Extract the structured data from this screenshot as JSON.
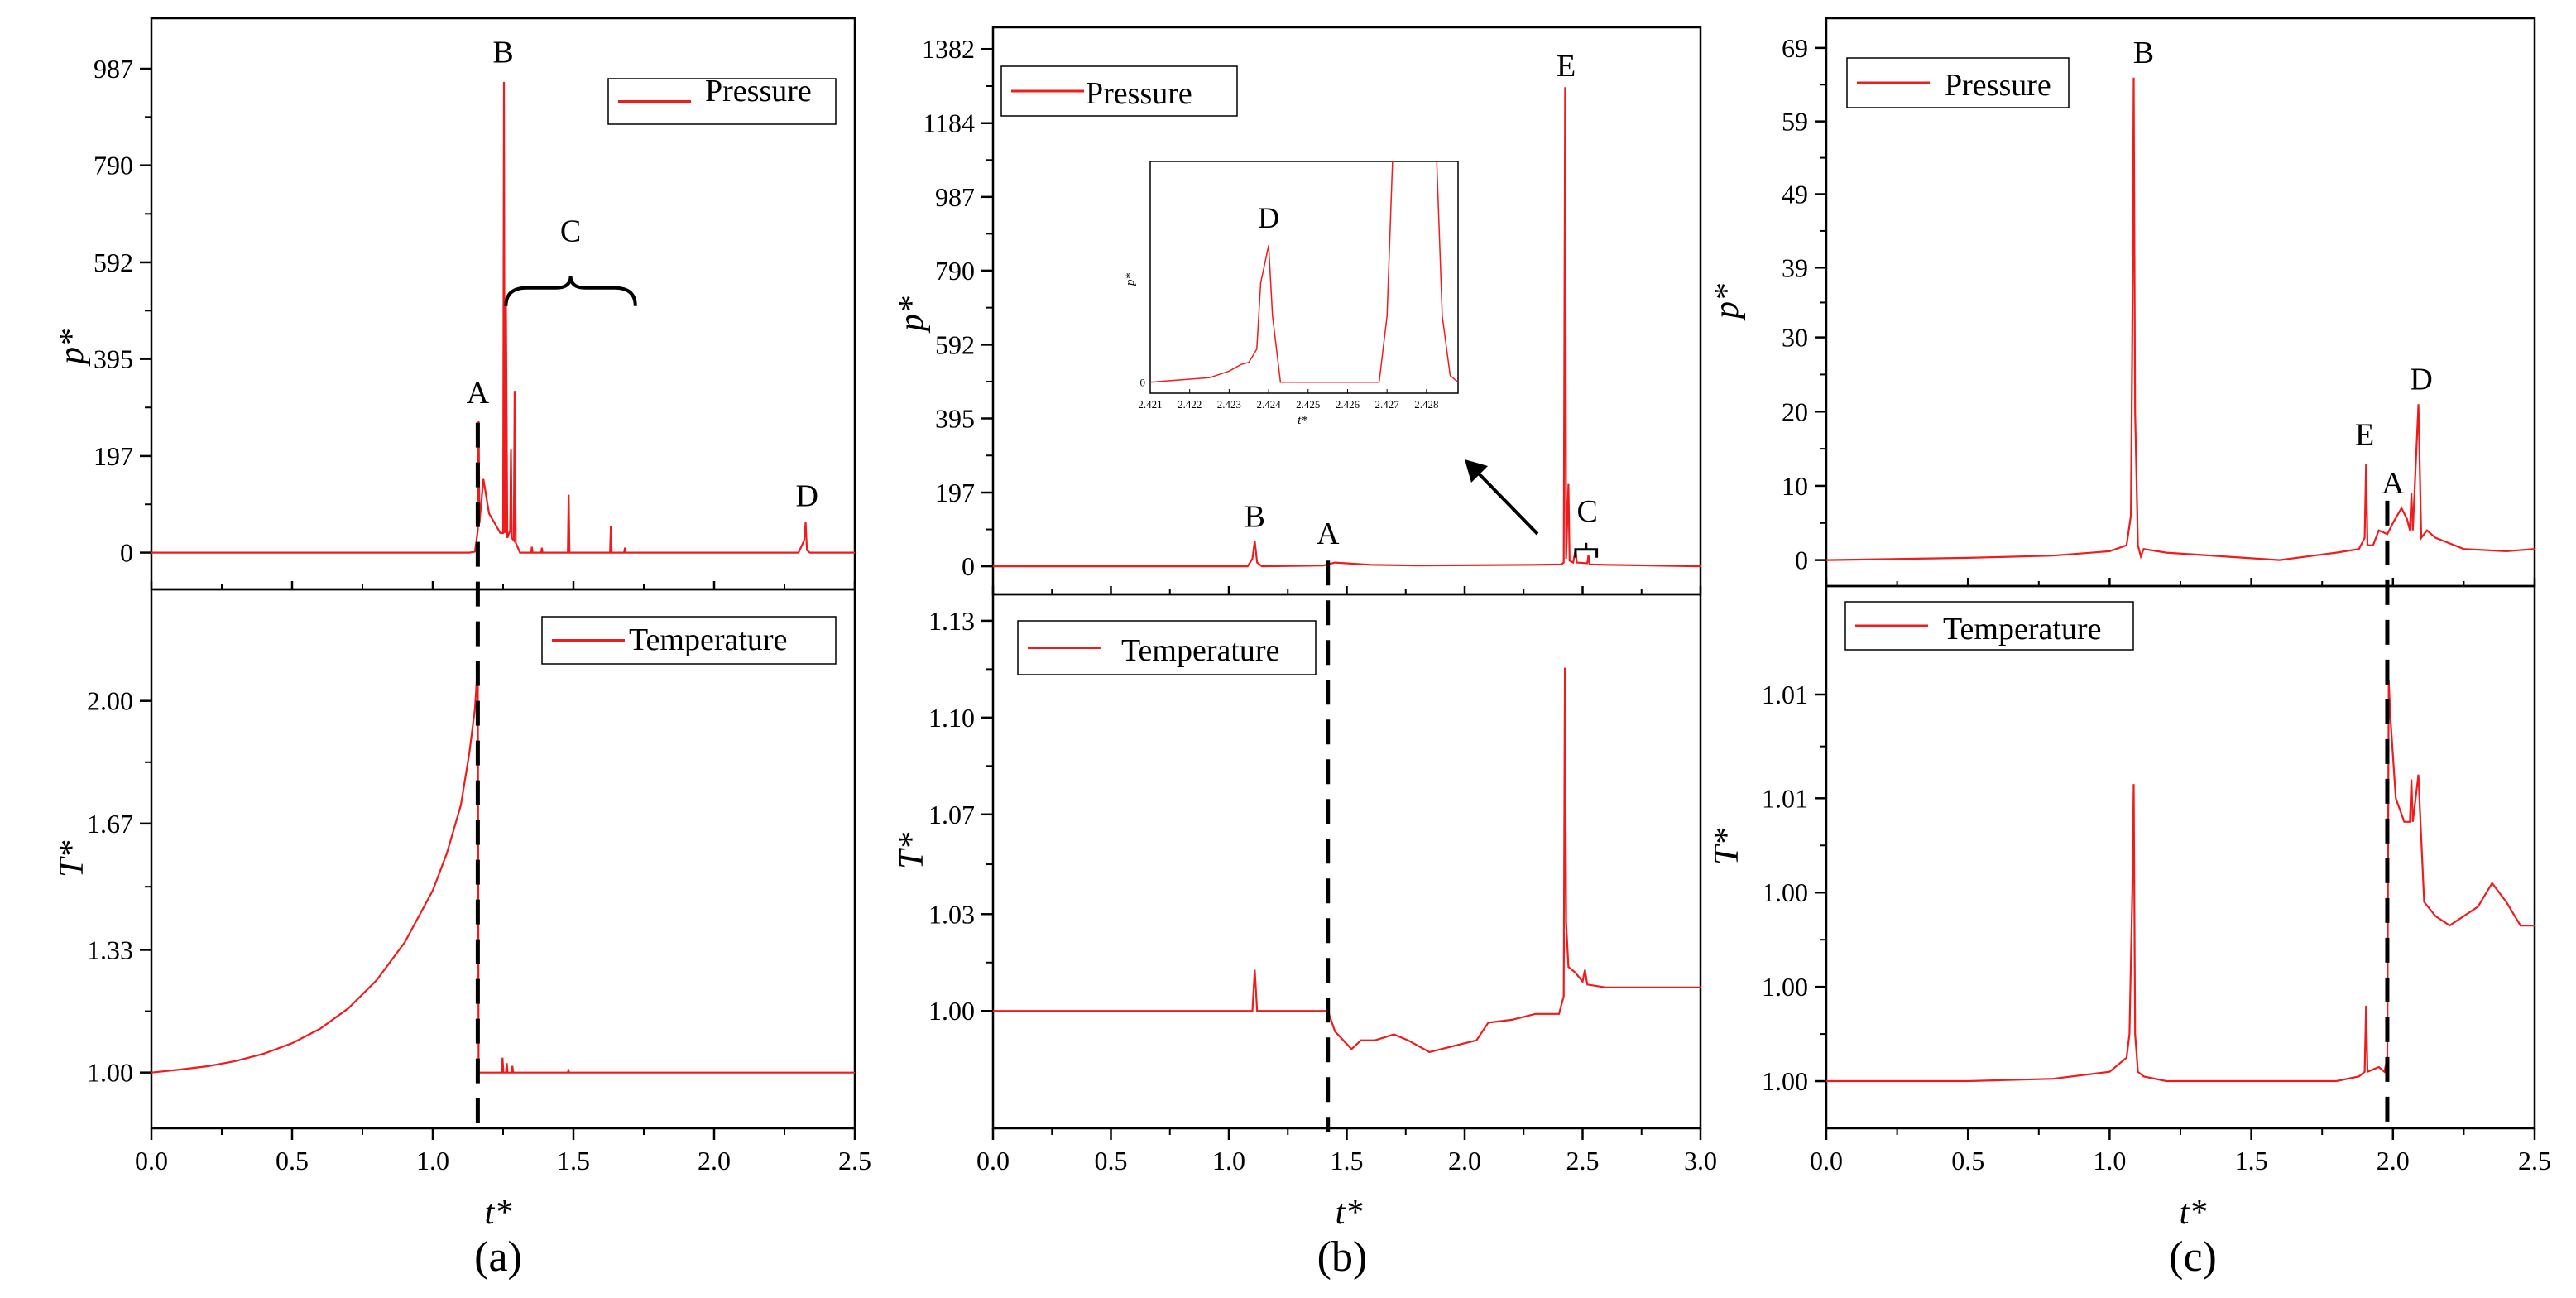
{
  "colors": {
    "series": "#ee1c1c",
    "axis": "#000000",
    "dash": "#000000"
  },
  "chart_data": [
    {
      "type": "line",
      "panel_label": "(a)",
      "xlabel": "t*",
      "xlim": [
        0,
        2.5
      ],
      "xticks": [
        "0.0",
        "0.5",
        "1.0",
        "1.5",
        "2.0",
        "2.5"
      ],
      "dashed_line_x": 1.16,
      "top": {
        "legend": "Pressure",
        "legend_position": "top-right",
        "ylabel": "p*",
        "ylim": [
          -75,
          1090
        ],
        "yticks": [
          {
            "v": 0,
            "label": "0"
          },
          {
            "v": 197,
            "label": "197"
          },
          {
            "v": 395,
            "label": "395"
          },
          {
            "v": 592,
            "label": "592"
          },
          {
            "v": 790,
            "label": "790"
          },
          {
            "v": 987,
            "label": "987"
          }
        ],
        "series": [
          [
            0,
            0
          ],
          [
            1.13,
            0
          ],
          [
            1.15,
            2
          ],
          [
            1.16,
            45
          ],
          [
            1.163,
            268
          ],
          [
            1.166,
            60
          ],
          [
            1.18,
            150
          ],
          [
            1.2,
            80
          ],
          [
            1.24,
            40
          ],
          [
            1.25,
            40
          ],
          [
            1.253,
            960
          ],
          [
            1.256,
            40
          ],
          [
            1.26,
            520
          ],
          [
            1.265,
            30
          ],
          [
            1.275,
            45
          ],
          [
            1.278,
            210
          ],
          [
            1.281,
            30
          ],
          [
            1.288,
            25
          ],
          [
            1.291,
            330
          ],
          [
            1.295,
            20
          ],
          [
            1.31,
            0
          ],
          [
            1.35,
            0
          ],
          [
            1.352,
            12
          ],
          [
            1.355,
            0
          ],
          [
            1.385,
            0
          ],
          [
            1.388,
            10
          ],
          [
            1.39,
            0
          ],
          [
            1.48,
            0
          ],
          [
            1.483,
            118
          ],
          [
            1.486,
            0
          ],
          [
            1.63,
            0
          ],
          [
            1.633,
            55
          ],
          [
            1.636,
            0
          ],
          [
            1.68,
            0
          ],
          [
            1.683,
            10
          ],
          [
            1.686,
            0
          ],
          [
            2.3,
            0
          ],
          [
            2.32,
            25
          ],
          [
            2.325,
            62
          ],
          [
            2.33,
            5
          ],
          [
            2.34,
            0
          ],
          [
            2.5,
            0
          ]
        ],
        "annotations": [
          {
            "label": "B",
            "x": 1.25,
            "y": 1000
          },
          {
            "label": "C",
            "x": 1.49,
            "y": 635
          },
          {
            "label": "A",
            "x": 1.16,
            "y": 305
          },
          {
            "label": "D",
            "x": 2.33,
            "y": 95
          }
        ]
      },
      "bottom": {
        "legend": "Temperature",
        "legend_position": "top-right",
        "ylabel": "T*",
        "ylim": [
          0.85,
          2.3
        ],
        "yticks": [
          {
            "v": 1.0,
            "label": "1.00"
          },
          {
            "v": 1.33,
            "label": "1.33"
          },
          {
            "v": 1.67,
            "label": "1.67"
          },
          {
            "v": 2.0,
            "label": "2.00"
          }
        ],
        "series": [
          [
            0,
            1.0
          ],
          [
            0.1,
            1.008
          ],
          [
            0.2,
            1.017
          ],
          [
            0.3,
            1.031
          ],
          [
            0.4,
            1.051
          ],
          [
            0.5,
            1.079
          ],
          [
            0.6,
            1.118
          ],
          [
            0.7,
            1.173
          ],
          [
            0.8,
            1.248
          ],
          [
            0.9,
            1.35
          ],
          [
            1.0,
            1.49
          ],
          [
            1.05,
            1.59
          ],
          [
            1.1,
            1.72
          ],
          [
            1.13,
            1.86
          ],
          [
            1.15,
            1.98
          ],
          [
            1.16,
            2.1
          ],
          [
            1.163,
            1.0
          ],
          [
            1.245,
            1.0
          ],
          [
            1.248,
            1.04
          ],
          [
            1.251,
            1.0
          ],
          [
            1.26,
            1.0
          ],
          [
            1.263,
            1.025
          ],
          [
            1.266,
            1.0
          ],
          [
            1.28,
            1.0
          ],
          [
            1.283,
            1.018
          ],
          [
            1.286,
            1.0
          ],
          [
            1.48,
            1.0
          ],
          [
            1.482,
            1.006
          ],
          [
            1.485,
            1.0
          ],
          [
            2.5,
            1.0
          ]
        ]
      }
    },
    {
      "type": "line",
      "panel_label": "(b)",
      "xlabel": "t*",
      "xlim": [
        0,
        3.0
      ],
      "xticks": [
        "0.0",
        "0.5",
        "1.0",
        "1.5",
        "2.0",
        "2.5",
        "3.0"
      ],
      "dashed_line_x": 1.42,
      "top": {
        "legend": "Pressure",
        "legend_position": "top-left",
        "ylabel": "p*",
        "ylim": [
          -75,
          1440
        ],
        "yticks": [
          {
            "v": 0,
            "label": "0"
          },
          {
            "v": 197,
            "label": "197"
          },
          {
            "v": 395,
            "label": "395"
          },
          {
            "v": 592,
            "label": "592"
          },
          {
            "v": 790,
            "label": "790"
          },
          {
            "v": 987,
            "label": "987"
          },
          {
            "v": 1184,
            "label": "1184"
          },
          {
            "v": 1382,
            "label": "1382"
          }
        ],
        "series": [
          [
            0,
            0
          ],
          [
            1.08,
            0
          ],
          [
            1.1,
            20
          ],
          [
            1.11,
            68
          ],
          [
            1.12,
            10
          ],
          [
            1.14,
            0
          ],
          [
            1.4,
            2
          ],
          [
            1.45,
            10
          ],
          [
            1.5,
            8
          ],
          [
            1.6,
            4
          ],
          [
            1.8,
            2
          ],
          [
            2.1,
            3
          ],
          [
            2.3,
            4
          ],
          [
            2.41,
            5
          ],
          [
            2.42,
            10
          ],
          [
            2.426,
            1280
          ],
          [
            2.43,
            20
          ],
          [
            2.44,
            220
          ],
          [
            2.445,
            15
          ],
          [
            2.46,
            10
          ],
          [
            2.47,
            45
          ],
          [
            2.475,
            10
          ],
          [
            2.52,
            8
          ],
          [
            2.525,
            30
          ],
          [
            2.53,
            5
          ],
          [
            2.6,
            4
          ],
          [
            3.0,
            0
          ]
        ],
        "annotations": [
          {
            "label": "E",
            "x": 2.43,
            "y": 1310
          },
          {
            "label": "B",
            "x": 1.11,
            "y": 105
          },
          {
            "label": "A",
            "x": 1.42,
            "y": 60
          },
          {
            "label": "C",
            "x": 2.52,
            "y": 120
          },
          {
            "label": "D",
            "x": 1.22,
            "y": 690
          }
        ]
      },
      "inset": {
        "ylabel": "p*",
        "xlabel": "t*",
        "xlim": [
          2.421,
          2.4288
        ],
        "ylim": [
          -0.05,
          1.0
        ],
        "xticks": [
          "2.421",
          "2.422",
          "2.423",
          "2.424",
          "2.425",
          "2.426",
          "2.427",
          "2.428"
        ],
        "yticks": [
          "0"
        ],
        "series": [
          [
            2.421,
            0
          ],
          [
            2.4225,
            0.02
          ],
          [
            2.423,
            0.05
          ],
          [
            2.4233,
            0.08
          ],
          [
            2.4235,
            0.09
          ],
          [
            2.4237,
            0.15
          ],
          [
            2.4238,
            0.45
          ],
          [
            2.424,
            0.62
          ],
          [
            2.4241,
            0.3
          ],
          [
            2.4243,
            0
          ],
          [
            2.4268,
            0
          ],
          [
            2.427,
            0.3
          ],
          [
            2.4272,
            1.3
          ],
          [
            2.4282,
            1.3
          ],
          [
            2.4284,
            0.3
          ],
          [
            2.4286,
            0.03
          ],
          [
            2.4288,
            0
          ]
        ]
      },
      "bottom": {
        "legend": "Temperature",
        "legend_position": "top-left",
        "ylabel": "T*",
        "ylim": [
          0.96,
          1.142
        ],
        "yticks": [
          {
            "v": 1.0,
            "label": "1.00"
          },
          {
            "v": 1.033,
            "label": "1.03"
          },
          {
            "v": 1.067,
            "label": "1.07"
          },
          {
            "v": 1.1,
            "label": "1.10"
          },
          {
            "v": 1.133,
            "label": "1.13"
          }
        ],
        "series": [
          [
            0,
            1.0
          ],
          [
            1.1,
            1.0
          ],
          [
            1.11,
            1.014
          ],
          [
            1.12,
            1.0
          ],
          [
            1.42,
            1.0
          ],
          [
            1.45,
            0.993
          ],
          [
            1.52,
            0.987
          ],
          [
            1.56,
            0.99
          ],
          [
            1.62,
            0.99
          ],
          [
            1.7,
            0.992
          ],
          [
            1.76,
            0.99
          ],
          [
            1.85,
            0.986
          ],
          [
            1.95,
            0.988
          ],
          [
            2.05,
            0.99
          ],
          [
            2.1,
            0.996
          ],
          [
            2.2,
            0.997
          ],
          [
            2.3,
            0.999
          ],
          [
            2.4,
            0.999
          ],
          [
            2.42,
            1.005
          ],
          [
            2.425,
            1.117
          ],
          [
            2.43,
            1.03
          ],
          [
            2.44,
            1.015
          ],
          [
            2.47,
            1.013
          ],
          [
            2.5,
            1.01
          ],
          [
            2.51,
            1.014
          ],
          [
            2.52,
            1.009
          ],
          [
            2.6,
            1.008
          ],
          [
            3.0,
            1.008
          ]
        ]
      }
    },
    {
      "type": "line",
      "panel_label": "(c)",
      "xlabel": "t*",
      "xlim": [
        0,
        2.5
      ],
      "xticks": [
        "0.0",
        "0.5",
        "1.0",
        "1.5",
        "2.0",
        "2.5"
      ],
      "dashed_line_x": 1.98,
      "top": {
        "legend": "Pressure",
        "legend_position": "top-left",
        "ylabel": "p*",
        "ylim": [
          -3.5,
          73
        ],
        "yticks": [
          {
            "v": 0,
            "label": "0"
          },
          {
            "v": 10,
            "label": "10"
          },
          {
            "v": 20,
            "label": "20"
          },
          {
            "v": 30,
            "label": "30"
          },
          {
            "v": 39.4,
            "label": "39"
          },
          {
            "v": 49.3,
            "label": "49"
          },
          {
            "v": 59.1,
            "label": "59"
          },
          {
            "v": 69,
            "label": "69"
          }
        ],
        "series": [
          [
            0,
            0
          ],
          [
            0.5,
            0.3
          ],
          [
            0.8,
            0.6
          ],
          [
            1.0,
            1.2
          ],
          [
            1.06,
            2
          ],
          [
            1.075,
            6
          ],
          [
            1.08,
            30
          ],
          [
            1.085,
            65
          ],
          [
            1.09,
            20
          ],
          [
            1.1,
            2
          ],
          [
            1.11,
            0.5
          ],
          [
            1.12,
            1.5
          ],
          [
            1.2,
            1
          ],
          [
            1.4,
            0.5
          ],
          [
            1.6,
            0
          ],
          [
            1.8,
            1
          ],
          [
            1.88,
            1.5
          ],
          [
            1.9,
            3
          ],
          [
            1.905,
            13
          ],
          [
            1.91,
            2
          ],
          [
            1.93,
            2
          ],
          [
            1.95,
            4
          ],
          [
            1.98,
            3.5
          ],
          [
            2.0,
            5
          ],
          [
            2.03,
            7
          ],
          [
            2.05,
            5.5
          ],
          [
            2.06,
            4
          ],
          [
            2.065,
            9
          ],
          [
            2.07,
            4
          ],
          [
            2.09,
            21
          ],
          [
            2.1,
            3
          ],
          [
            2.12,
            4
          ],
          [
            2.15,
            3
          ],
          [
            2.25,
            1.5
          ],
          [
            2.4,
            1.2
          ],
          [
            2.5,
            1.5
          ]
        ],
        "annotations": [
          {
            "label": "B",
            "x": 1.12,
            "y": 67
          },
          {
            "label": "E",
            "x": 1.9,
            "y": 15.5
          },
          {
            "label": "A",
            "x": 2.0,
            "y": 9
          },
          {
            "label": "D",
            "x": 2.1,
            "y": 23
          }
        ]
      },
      "bottom": {
        "legend": "Temperature",
        "legend_position": "top-left",
        "ylabel": "T*",
        "ylim": [
          0.998,
          1.0095
        ],
        "yticks": [
          {
            "v": 0.999,
            "label": "1.00"
          },
          {
            "v": 1.001,
            "label": "1.00"
          },
          {
            "v": 1.003,
            "label": "1.00"
          },
          {
            "v": 1.005,
            "label": "1.01"
          },
          {
            "v": 1.0072,
            "label": "1.01"
          }
        ],
        "series": [
          [
            0,
            0.999
          ],
          [
            0.5,
            0.999
          ],
          [
            0.8,
            0.99905
          ],
          [
            1.0,
            0.9992
          ],
          [
            1.06,
            0.9995
          ],
          [
            1.07,
            1.0
          ],
          [
            1.08,
            1.003
          ],
          [
            1.085,
            1.0053
          ],
          [
            1.09,
            1.0
          ],
          [
            1.1,
            0.9992
          ],
          [
            1.12,
            0.9991
          ],
          [
            1.2,
            0.999
          ],
          [
            1.4,
            0.999
          ],
          [
            1.6,
            0.999
          ],
          [
            1.8,
            0.999
          ],
          [
            1.88,
            0.9991
          ],
          [
            1.9,
            0.9992
          ],
          [
            1.905,
            1.0006
          ],
          [
            1.91,
            0.9992
          ],
          [
            1.95,
            0.9993
          ],
          [
            1.97,
            0.9992
          ],
          [
            1.98,
            0.9995
          ],
          [
            1.985,
            1.0075
          ],
          [
            1.99,
            1.0068
          ],
          [
            2.01,
            1.005
          ],
          [
            2.04,
            1.0045
          ],
          [
            2.06,
            1.0045
          ],
          [
            2.065,
            1.0054
          ],
          [
            2.07,
            1.0045
          ],
          [
            2.09,
            1.0055
          ],
          [
            2.095,
            1.0048
          ],
          [
            2.11,
            1.0028
          ],
          [
            2.15,
            1.0025
          ],
          [
            2.2,
            1.0023
          ],
          [
            2.3,
            1.0027
          ],
          [
            2.35,
            1.0032
          ],
          [
            2.4,
            1.0028
          ],
          [
            2.45,
            1.0023
          ],
          [
            2.5,
            1.0023
          ]
        ]
      }
    }
  ]
}
